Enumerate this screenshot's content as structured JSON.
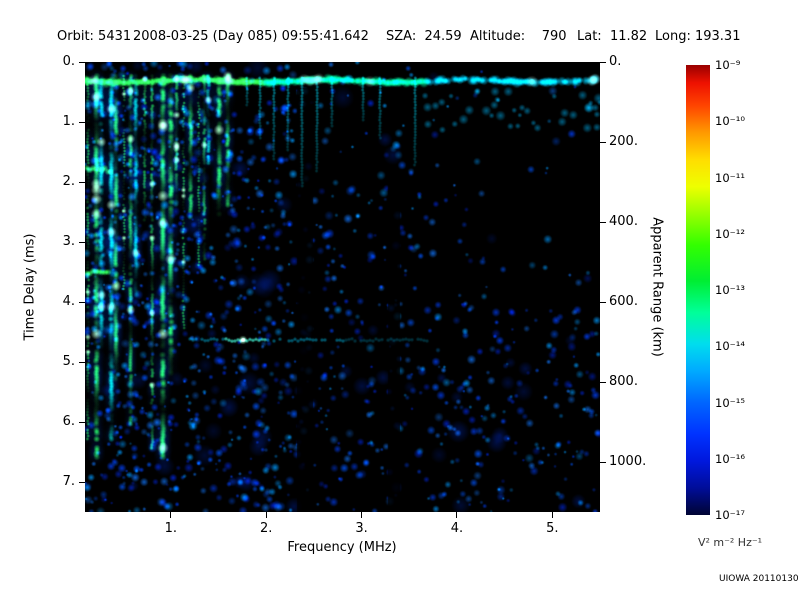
{
  "header": {
    "orbit": "Orbit: 5431",
    "datetime": "2008-03-25 (Day 085) 09:55:41.642",
    "sza": "SZA:  24.59",
    "altitude": "Altitude:    790",
    "lat": "Lat:  11.82",
    "long": "Long: 193.31"
  },
  "credit": "UIOWA 20110130",
  "chart_data": {
    "type": "heatmap",
    "title": "",
    "xlabel": "Frequency (MHz)",
    "ylabel_left": "Time Delay (ms)",
    "ylabel_right": "Apparent Range (km)",
    "xlim": [
      0.1,
      5.5
    ],
    "ylim": [
      0,
      7.5
    ],
    "right_lim": [
      0,
      1125
    ],
    "x_ticks": [
      "1.",
      "2.",
      "3.",
      "4.",
      "5."
    ],
    "x_tick_values": [
      1,
      2,
      3,
      4,
      5
    ],
    "y_ticks": [
      "0.",
      "1.",
      "2.",
      "3.",
      "4.",
      "5.",
      "6.",
      "7."
    ],
    "y_tick_values": [
      0,
      1,
      2,
      3,
      4,
      5,
      6,
      7
    ],
    "right_ticks": [
      "0.",
      "200.",
      "400.",
      "600.",
      "800.",
      "1000."
    ],
    "right_tick_values": [
      0,
      200,
      400,
      600,
      800,
      1000
    ],
    "background_color": "#000000",
    "colorbar": {
      "ticks": [
        "10⁻⁹",
        "10⁻¹⁰",
        "10⁻¹¹",
        "10⁻¹²",
        "10⁻¹³",
        "10⁻¹⁴",
        "10⁻¹⁵",
        "10⁻¹⁶",
        "10⁻¹⁷"
      ],
      "units": "V² m⁻² Hz⁻¹",
      "gradient": [
        {
          "c": "#990000",
          "p": 0
        },
        {
          "c": "#ee1100",
          "p": 4
        },
        {
          "c": "#ff4400",
          "p": 9
        },
        {
          "c": "#ff9900",
          "p": 15
        },
        {
          "c": "#ffdd00",
          "p": 21
        },
        {
          "c": "#eeff00",
          "p": 27
        },
        {
          "c": "#99ff00",
          "p": 33
        },
        {
          "c": "#33ff00",
          "p": 40
        },
        {
          "c": "#00ee33",
          "p": 48
        },
        {
          "c": "#00ff99",
          "p": 55
        },
        {
          "c": "#00ddee",
          "p": 62
        },
        {
          "c": "#00aaff",
          "p": 68
        },
        {
          "c": "#0066ff",
          "p": 75
        },
        {
          "c": "#0033ff",
          "p": 82
        },
        {
          "c": "#0018dd",
          "p": 88
        },
        {
          "c": "#000d99",
          "p": 94
        },
        {
          "c": "#000433",
          "p": 100
        }
      ]
    },
    "features": [
      "bright green/cyan surface echo band near 0.3 ms delay across all frequencies",
      "dense vertical green plasma/ionospheric lines below ~1.6 MHz extending to long delays",
      "short cyan streaks hanging from the surface band between ~1.6 and 3.5 MHz",
      "thin cyan ionospheric echo trace near 4.6 ms between ~1.2 and 3.5 MHz with a bright knot near 1.8 MHz",
      "diffuse blue noise speckle, densest at low frequencies and long delays; dark vertical gaps near 2.4 and 3.3 MHz"
    ]
  }
}
